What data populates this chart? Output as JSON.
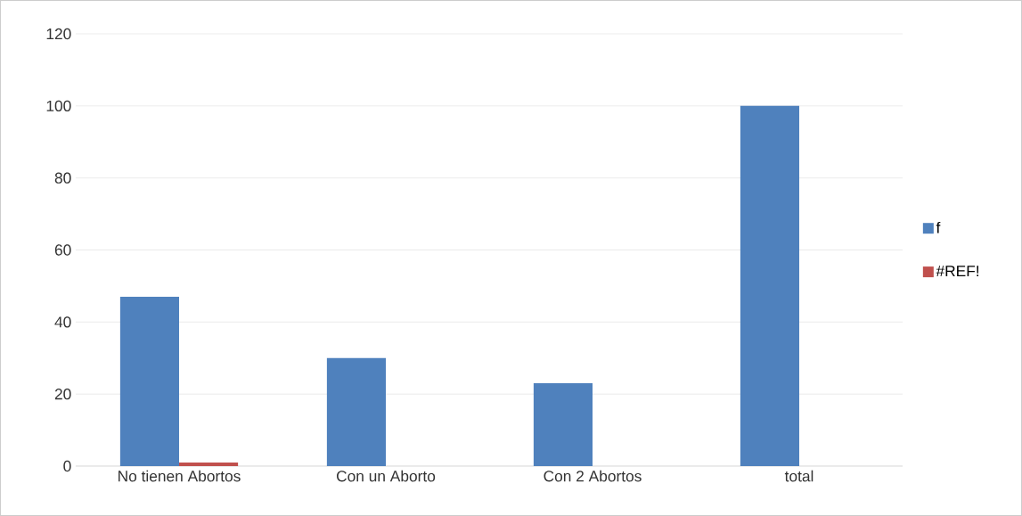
{
  "chart_data": {
    "type": "bar",
    "categories": [
      "No tienen Abortos",
      "Con un Aborto",
      "Con 2 Abortos",
      "total"
    ],
    "series": [
      {
        "name": "f",
        "color": "#4f81bd",
        "values": [
          47,
          30,
          23,
          100
        ]
      },
      {
        "name": "#REF!",
        "color": "#c0504d",
        "values": [
          1,
          null,
          null,
          null
        ]
      }
    ],
    "ylim": [
      0,
      120
    ],
    "yticks": [
      0,
      20,
      40,
      60,
      80,
      100,
      120
    ],
    "grid": "y",
    "legend": "right"
  }
}
